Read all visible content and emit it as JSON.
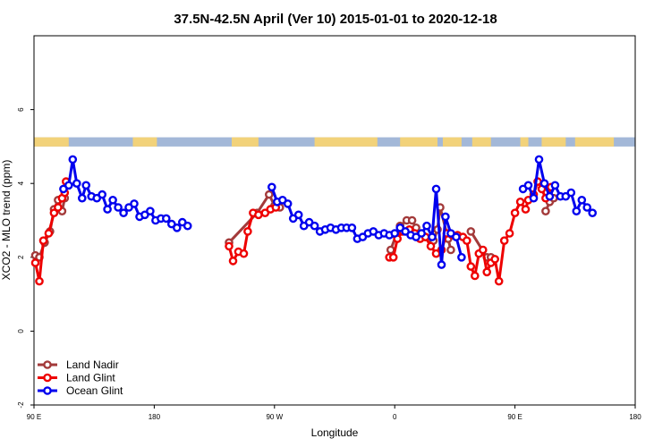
{
  "chart_data": {
    "type": "line",
    "title": "37.5N-42.5N April (Ver 10)   2015-01-01 to 2020-12-18",
    "xlabel": "Longitude",
    "ylabel": "XCO2 - MLO trend (ppm)",
    "xlim": [
      90,
      540
    ],
    "ylim": [
      -2,
      8
    ],
    "x_ticks": [
      {
        "value": 90,
        "label": "90 E"
      },
      {
        "value": 180,
        "label": "180"
      },
      {
        "value": 270,
        "label": "90 W"
      },
      {
        "value": 360,
        "label": "0"
      },
      {
        "value": 450,
        "label": "90 E"
      },
      {
        "value": 540,
        "label": "180"
      }
    ],
    "y_ticks": [
      {
        "value": -2,
        "label": "-2"
      },
      {
        "value": 0,
        "label": "0"
      },
      {
        "value": 2,
        "label": "2"
      },
      {
        "value": 4,
        "label": "4"
      },
      {
        "value": 6,
        "label": "6"
      }
    ],
    "grid": false,
    "legend_position": "bottom-left",
    "land_strip": {
      "y_range": [
        5.0,
        5.25
      ],
      "ocean_color": "#a3b8d8",
      "land_color": "#f2d27a",
      "land_spans": [
        [
          90,
          116
        ],
        [
          164,
          182
        ],
        [
          238,
          258
        ],
        [
          300,
          347
        ],
        [
          364,
          392
        ],
        [
          396,
          410
        ],
        [
          418,
          432
        ],
        [
          454,
          460
        ],
        [
          470,
          488
        ],
        [
          495,
          524
        ],
        [
          544,
          550
        ]
      ]
    },
    "series": [
      {
        "name": "Land Nadir",
        "color": "#a33a3a",
        "segments": [
          [
            [
              91,
              2.05
            ],
            [
              94,
              2.0
            ],
            [
              98,
              2.4
            ],
            [
              102,
              2.7
            ],
            [
              105,
              3.3
            ],
            [
              108,
              3.55
            ],
            [
              111,
              3.25
            ],
            [
              113,
              3.6
            ]
          ],
          [
            [
              236,
              2.4
            ],
            [
              257,
              3.2
            ],
            [
              266,
              3.7
            ],
            [
              270,
              3.4
            ],
            [
              274,
              3.35
            ]
          ],
          [
            [
              357,
              2.2
            ],
            [
              361,
              2.6
            ],
            [
              364,
              2.85
            ],
            [
              369,
              3.0
            ],
            [
              373,
              3.0
            ],
            [
              376,
              2.8
            ],
            [
              383,
              2.55
            ],
            [
              389,
              2.45
            ],
            [
              392,
              2.75
            ],
            [
              394,
              3.35
            ],
            [
              400,
              2.5
            ],
            [
              402,
              2.2
            ]
          ],
          [
            [
              417,
              2.7
            ],
            [
              429,
              2.0
            ],
            [
              432,
              2.0
            ]
          ],
          [
            [
              473,
              3.25
            ],
            [
              476,
              3.5
            ],
            [
              479,
              3.6
            ]
          ]
        ]
      },
      {
        "name": "Land Glint",
        "color": "#ee0000",
        "segments": [
          [
            [
              91,
              1.85
            ],
            [
              94,
              1.35
            ],
            [
              97,
              2.45
            ],
            [
              101,
              2.65
            ],
            [
              105,
              3.2
            ],
            [
              108,
              3.35
            ],
            [
              111,
              3.6
            ],
            [
              113,
              3.75
            ],
            [
              114,
              4.05
            ]
          ],
          [
            [
              236,
              2.3
            ],
            [
              239,
              1.9
            ],
            [
              243,
              2.15
            ],
            [
              247,
              2.1
            ],
            [
              250,
              2.7
            ],
            [
              254,
              3.2
            ],
            [
              258,
              3.15
            ],
            [
              263,
              3.2
            ],
            [
              267,
              3.3
            ],
            [
              271,
              3.35
            ]
          ],
          [
            [
              356,
              2.0
            ],
            [
              359,
              2.0
            ],
            [
              362,
              2.5
            ],
            [
              366,
              2.7
            ],
            [
              371,
              2.75
            ],
            [
              375,
              2.65
            ],
            [
              379,
              2.5
            ],
            [
              383,
              2.55
            ],
            [
              387,
              2.3
            ],
            [
              391,
              2.1
            ],
            [
              395,
              2.2
            ],
            [
              399,
              2.65
            ],
            [
              403,
              2.6
            ],
            [
              407,
              2.6
            ],
            [
              411,
              2.55
            ],
            [
              414,
              2.45
            ],
            [
              417,
              1.75
            ],
            [
              420,
              1.5
            ],
            [
              423,
              2.1
            ],
            [
              426,
              2.2
            ],
            [
              429,
              1.6
            ],
            [
              432,
              1.85
            ],
            [
              435,
              1.95
            ],
            [
              438,
              1.35
            ],
            [
              442,
              2.45
            ],
            [
              446,
              2.65
            ],
            [
              450,
              3.2
            ],
            [
              454,
              3.5
            ],
            [
              458,
              3.3
            ],
            [
              460,
              3.55
            ],
            [
              464,
              3.7
            ],
            [
              467,
              4.05
            ],
            [
              470,
              3.85
            ],
            [
              473,
              3.6
            ],
            [
              477,
              3.9
            ]
          ]
        ]
      },
      {
        "name": "Ocean Glint",
        "color": "#0000ee",
        "segments": [
          [
            [
              112,
              3.85
            ],
            [
              116,
              3.95
            ],
            [
              119,
              4.65
            ],
            [
              122,
              4.0
            ],
            [
              126,
              3.6
            ],
            [
              129,
              3.95
            ],
            [
              133,
              3.65
            ],
            [
              137,
              3.6
            ],
            [
              141,
              3.7
            ],
            [
              145,
              3.3
            ],
            [
              149,
              3.55
            ],
            [
              153,
              3.35
            ],
            [
              157,
              3.2
            ],
            [
              161,
              3.35
            ],
            [
              165,
              3.45
            ],
            [
              169,
              3.1
            ],
            [
              173,
              3.15
            ],
            [
              177,
              3.25
            ],
            [
              181,
              3.0
            ],
            [
              185,
              3.05
            ],
            [
              189,
              3.05
            ],
            [
              193,
              2.9
            ],
            [
              197,
              2.8
            ],
            [
              201,
              2.95
            ],
            [
              205,
              2.85
            ]
          ],
          [
            [
              268,
              3.9
            ],
            [
              272,
              3.5
            ],
            [
              276,
              3.55
            ],
            [
              280,
              3.45
            ],
            [
              284,
              3.05
            ],
            [
              288,
              3.15
            ],
            [
              292,
              2.85
            ],
            [
              296,
              2.95
            ],
            [
              300,
              2.85
            ],
            [
              304,
              2.7
            ],
            [
              308,
              2.75
            ],
            [
              312,
              2.8
            ],
            [
              316,
              2.75
            ],
            [
              320,
              2.8
            ],
            [
              324,
              2.8
            ],
            [
              328,
              2.8
            ],
            [
              332,
              2.5
            ],
            [
              336,
              2.55
            ],
            [
              340,
              2.65
            ],
            [
              344,
              2.7
            ],
            [
              348,
              2.6
            ],
            [
              352,
              2.65
            ],
            [
              356,
              2.6
            ],
            [
              360,
              2.65
            ],
            [
              364,
              2.8
            ],
            [
              368,
              2.7
            ],
            [
              372,
              2.6
            ],
            [
              376,
              2.55
            ],
            [
              380,
              2.65
            ],
            [
              384,
              2.85
            ],
            [
              388,
              2.55
            ],
            [
              391,
              3.85
            ],
            [
              395,
              1.8
            ],
            [
              398,
              3.1
            ],
            [
              402,
              2.65
            ],
            [
              406,
              2.55
            ],
            [
              410,
              2.0
            ]
          ],
          [
            [
              456,
              3.85
            ],
            [
              460,
              3.95
            ],
            [
              464,
              3.6
            ],
            [
              468,
              4.65
            ],
            [
              472,
              4.0
            ],
            [
              476,
              3.65
            ],
            [
              480,
              3.95
            ],
            [
              484,
              3.65
            ],
            [
              488,
              3.65
            ],
            [
              492,
              3.75
            ],
            [
              496,
              3.25
            ],
            [
              500,
              3.55
            ],
            [
              504,
              3.35
            ],
            [
              508,
              3.2
            ]
          ]
        ]
      }
    ]
  }
}
